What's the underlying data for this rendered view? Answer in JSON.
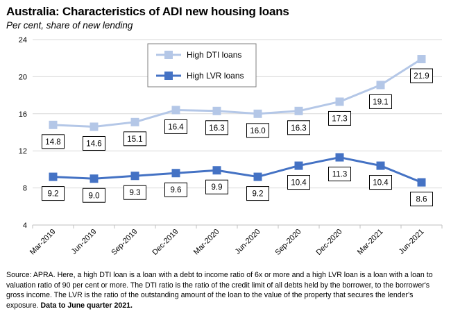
{
  "header": {
    "title": "Australia: Characteristics of ADI new housing loans",
    "subtitle": "Per cent, share of new lending"
  },
  "chart_data": {
    "type": "line",
    "title": "Australia: Characteristics of ADI new housing loans",
    "subtitle": "Per cent, share of new lending",
    "categories": [
      "Mar-2019",
      "Jun-2019",
      "Sep-2019",
      "Dec-2019",
      "Mar-2020",
      "Jun-2020",
      "Sep-2020",
      "Dec-2020",
      "Mar-2021",
      "Jun-2021"
    ],
    "series": [
      {
        "name": "High DTI loans",
        "color": "#b4c7e7",
        "values": [
          14.8,
          14.6,
          15.1,
          16.4,
          16.3,
          16.0,
          16.3,
          17.3,
          19.1,
          21.9
        ],
        "labels": [
          "14.8",
          "14.6",
          "15.1",
          "16.4",
          "16.3",
          "16.0",
          "16.3",
          "17.3",
          "19.1",
          "21.9"
        ]
      },
      {
        "name": "High LVR loans",
        "color": "#4472c4",
        "values": [
          9.2,
          9.0,
          9.3,
          9.6,
          9.9,
          9.2,
          10.4,
          11.3,
          10.4,
          8.6
        ],
        "labels": [
          "9.2",
          "9.0",
          "9.3",
          "9.6",
          "9.9",
          "9.2",
          "10.4",
          "11.3",
          "10.4",
          "8.6"
        ]
      }
    ],
    "ylim": [
      4,
      24
    ],
    "yticks": [
      4,
      8,
      12,
      16,
      20,
      24
    ],
    "ytick_labels": [
      "4",
      "8",
      "12",
      "16",
      "20",
      "24"
    ],
    "grid": true,
    "legend": "top-center"
  },
  "footer": {
    "source": "Source: APRA. Here, a high DTI loan is a loan with a debt to income ratio of 6x or more and a high LVR loan is a loan with a loan to valuation ratio of 90 per cent or more. The DTI ratio is the ratio of the credit limit of all debts held by the borrower, to the borrower's gross income.  The LVR is the ratio of the outstanding amount of the loan to the value of the property that secures the lender's exposure.",
    "source_bold": "Data to June quarter  2021."
  }
}
